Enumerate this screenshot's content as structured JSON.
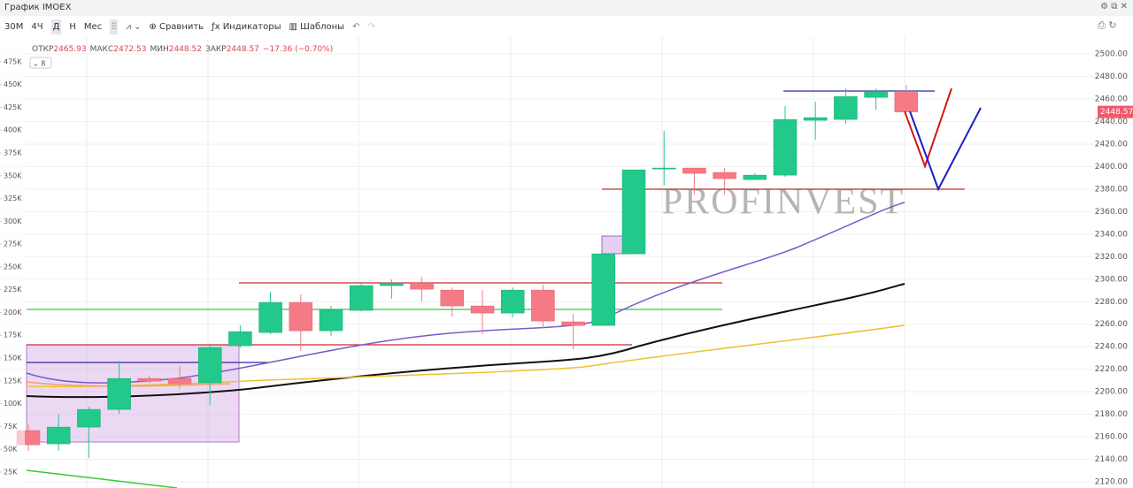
{
  "header": {
    "title": "График IMOEX"
  },
  "toolbar": {
    "intervals": [
      "30M",
      "4Ч",
      "Д",
      "Н",
      "Мес"
    ],
    "compare": "Сравнить",
    "indicators": "Индикаторы",
    "templates": "Шаблоны"
  },
  "legend": {
    "open_label": "ОТКР",
    "high_label": "МАКС",
    "low_label": "МИН",
    "close_label": "ЗАКР",
    "change": "−17.36 (−0.70%)",
    "indicator_count": "8"
  },
  "chart_data": {
    "type": "candlestick",
    "watermark": "PROFINVEST",
    "candles": [
      [
        2165.5,
        2171.0,
        2147.4,
        2152.9
      ],
      [
        2153.7,
        2180.4,
        2147.4,
        2168.6
      ],
      [
        2168.6,
        2186.7,
        2141.1,
        2184.3
      ],
      [
        2184.3,
        2227.5,
        2180.4,
        2211.8
      ],
      [
        2211.8,
        2214.1,
        2207.9,
        2209.4
      ],
      [
        2211.8,
        2222.8,
        2202.4,
        2207.1
      ],
      [
        2207.9,
        2241.6,
        2188.2,
        2239.3
      ],
      [
        2240.9,
        2258.9,
        2239.3,
        2253.4
      ],
      [
        2252.6,
        2288.8,
        2251.1,
        2279.3
      ],
      [
        2279.3,
        2286.4,
        2236.1,
        2254.2
      ],
      [
        2254.2,
        2276.2,
        2249.5,
        2273.0
      ],
      [
        2272.3,
        2297.4,
        2271.5,
        2294.3
      ],
      [
        2294.3,
        2299.7,
        2282.5,
        2296.6
      ],
      [
        2296.6,
        2302.1,
        2280.1,
        2291.1
      ],
      [
        2290.3,
        2292.7,
        2266.8,
        2276.2
      ],
      [
        2276.2,
        2290.3,
        2251.1,
        2269.9
      ],
      [
        2269.9,
        2292.7,
        2266.0,
        2290.3
      ],
      [
        2290.3,
        2295.0,
        2256.6,
        2262.8
      ],
      [
        2262.1,
        2269.1,
        2237.7,
        2258.9
      ],
      [
        2258.9,
        2322.5,
        2258.9,
        2322.5
      ],
      [
        2322.5,
        2397.1,
        2322.5,
        2397.1
      ],
      [
        2397.9,
        2431.7,
        2383.0,
        2398.7
      ],
      [
        2398.7,
        2398.7,
        2375.1,
        2394.0
      ],
      [
        2394.8,
        2398.7,
        2375.1,
        2389.3
      ],
      [
        2388.5,
        2394.0,
        2388.5,
        2392.4
      ],
      [
        2392.4,
        2453.7,
        2390.8,
        2441.9
      ],
      [
        2441.1,
        2457.6,
        2423.8,
        2443.5
      ],
      [
        2441.9,
        2469.4,
        2438.0,
        2462.3
      ],
      [
        2461.5,
        2469.4,
        2450.5,
        2466.2
      ],
      [
        2465.93,
        2472.53,
        2448.52,
        2448.57
      ]
    ],
    "up_color": "#22c98a",
    "down_color": "#f47a86",
    "last_price_label": "2448.57",
    "ylim": [
      2114.5,
      2515
    ],
    "yticks": [
      {
        "value": 2120,
        "label": "2120.00"
      },
      {
        "value": 2140,
        "label": "2140.00"
      },
      {
        "value": 2160,
        "label": "2160.00"
      },
      {
        "value": 2180,
        "label": "2180.00"
      },
      {
        "value": 2200,
        "label": "2200.00"
      },
      {
        "value": 2220,
        "label": "2220.00"
      },
      {
        "value": 2240,
        "label": "2240.00"
      },
      {
        "value": 2260,
        "label": "2260.00"
      },
      {
        "value": 2280,
        "label": "2280.00"
      },
      {
        "value": 2300,
        "label": "2300.00"
      },
      {
        "value": 2320,
        "label": "2320.00"
      },
      {
        "value": 2340,
        "label": "2340.00"
      },
      {
        "value": 2360,
        "label": "2360.00"
      },
      {
        "value": 2380,
        "label": "2380.00"
      },
      {
        "value": 2400,
        "label": "2400.00"
      },
      {
        "value": 2420,
        "label": "2420.00"
      },
      {
        "value": 2440,
        "label": "2440.00"
      },
      {
        "value": 2460,
        "label": "2460.00"
      },
      {
        "value": 2480,
        "label": "2480.00"
      },
      {
        "value": 2500,
        "label": "2500.00"
      }
    ],
    "y2lim": [
      7500,
      502000
    ],
    "y2ticks": [
      {
        "value": 25000,
        "label": "25K"
      },
      {
        "value": 50000,
        "label": "50K"
      },
      {
        "value": 75000,
        "label": "75K"
      },
      {
        "value": 100000,
        "label": "100K"
      },
      {
        "value": 125000,
        "label": "125K"
      },
      {
        "value": 150000,
        "label": "150K"
      },
      {
        "value": 175000,
        "label": "175K"
      },
      {
        "value": 200000,
        "label": "200K"
      },
      {
        "value": 225000,
        "label": "225K"
      },
      {
        "value": 250000,
        "label": "250K"
      },
      {
        "value": 275000,
        "label": "275K"
      },
      {
        "value": 300000,
        "label": "300K"
      },
      {
        "value": 325000,
        "label": "325K"
      },
      {
        "value": 350000,
        "label": "350K"
      },
      {
        "value": 375000,
        "label": "375K"
      },
      {
        "value": 400000,
        "label": "400K"
      },
      {
        "value": 425000,
        "label": "425K"
      },
      {
        "value": 450000,
        "label": "450K"
      },
      {
        "value": 475000,
        "label": "475K"
      }
    ],
    "grid": true
  }
}
